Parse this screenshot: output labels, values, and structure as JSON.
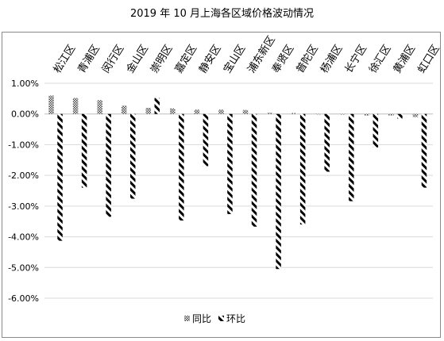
{
  "chart_data": {
    "type": "bar",
    "title": "2019 年 10 月上海各区域价格波动情况",
    "categories": [
      "松江区",
      "青浦区",
      "闵行区",
      "金山区",
      "崇明区",
      "嘉定区",
      "静安区",
      "宝山区",
      "浦东新区",
      "奉贤区",
      "普陀区",
      "杨浦区",
      "长宁区",
      "徐汇区",
      "黄浦区",
      "虹口区"
    ],
    "series": [
      {
        "name": "同比",
        "values": [
          0.6,
          0.52,
          0.45,
          0.27,
          0.2,
          0.18,
          0.14,
          0.14,
          0.13,
          0.04,
          0.03,
          0.0,
          -0.02,
          -0.05,
          -0.05,
          -0.1
        ]
      },
      {
        "name": "环比",
        "values": [
          -4.13,
          -2.4,
          -3.35,
          -2.76,
          0.52,
          -3.47,
          -1.7,
          -3.26,
          -3.67,
          -5.05,
          -3.6,
          -1.88,
          -2.84,
          -1.09,
          -0.15,
          -2.4
        ]
      }
    ],
    "yticks": [
      "1.00%",
      "0.00%",
      "-1.00%",
      "-2.00%",
      "-3.00%",
      "-4.00%",
      "-5.00%",
      "-6.00%"
    ],
    "ylim": [
      -6,
      1
    ],
    "legend_position": "bottom",
    "grid": true
  }
}
